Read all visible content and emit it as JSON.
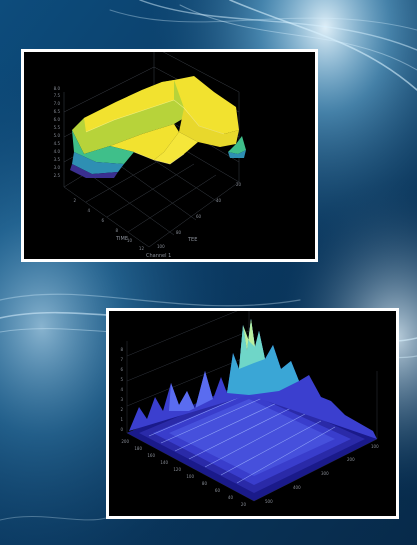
{
  "scene": {
    "background_color": "#0a3a63",
    "light_color": "#dff4ff",
    "frame_color": "#ffffff",
    "panel_background": "#000000"
  },
  "top_plot": {
    "type": "3d-surface",
    "colormap": [
      "#3a2f8f",
      "#2e8fb3",
      "#3fbf8a",
      "#b7d33a",
      "#f2e22f"
    ],
    "z_ticks": [
      "8.0",
      "7.5",
      "7.0",
      "6.5",
      "6.0",
      "5.5",
      "5.0",
      "4.5",
      "4.0",
      "3.5",
      "3.0",
      "2.5"
    ],
    "left_ticks": [
      "2",
      "4",
      "6",
      "8",
      "10",
      "12"
    ],
    "right_ticks": [
      "100",
      "80",
      "60",
      "40",
      "20"
    ],
    "left_axis_label": "TIME",
    "right_axis_label": "TEE",
    "corner_label": "Channel 1"
  },
  "bottom_plot": {
    "type": "3d-waterfall",
    "colormap": [
      "#1a1a8a",
      "#3b3fcf",
      "#5a6cf0",
      "#3aa6d6",
      "#6fd6c8"
    ],
    "z_ticks": [
      "8",
      "7",
      "6",
      "5",
      "4",
      "3",
      "2",
      "1",
      "0"
    ],
    "left_ticks": [
      "200",
      "180",
      "160",
      "140",
      "120",
      "100",
      "80",
      "60",
      "40",
      "20"
    ],
    "right_ticks": [
      "500",
      "400",
      "300",
      "200",
      "100"
    ]
  }
}
